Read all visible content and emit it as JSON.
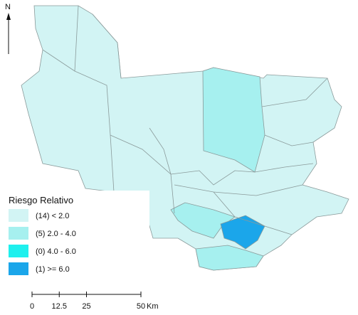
{
  "north": "N",
  "legend": {
    "title": "Riesgo Relativo",
    "classes": [
      {
        "label": "(14) <  2.0",
        "color": "#d2f4f4"
      },
      {
        "label": "(5)   2.0 -  4.0",
        "color": "#a6f0ef"
      },
      {
        "label": "(0)   4.0 -  6.0",
        "color": "#1ef0ee"
      },
      {
        "label": "(1) >=  6.0",
        "color": "#1ba6ea"
      }
    ]
  },
  "scale": {
    "ticks": [
      0,
      12.5,
      25,
      50
    ],
    "unit": "Km"
  }
}
